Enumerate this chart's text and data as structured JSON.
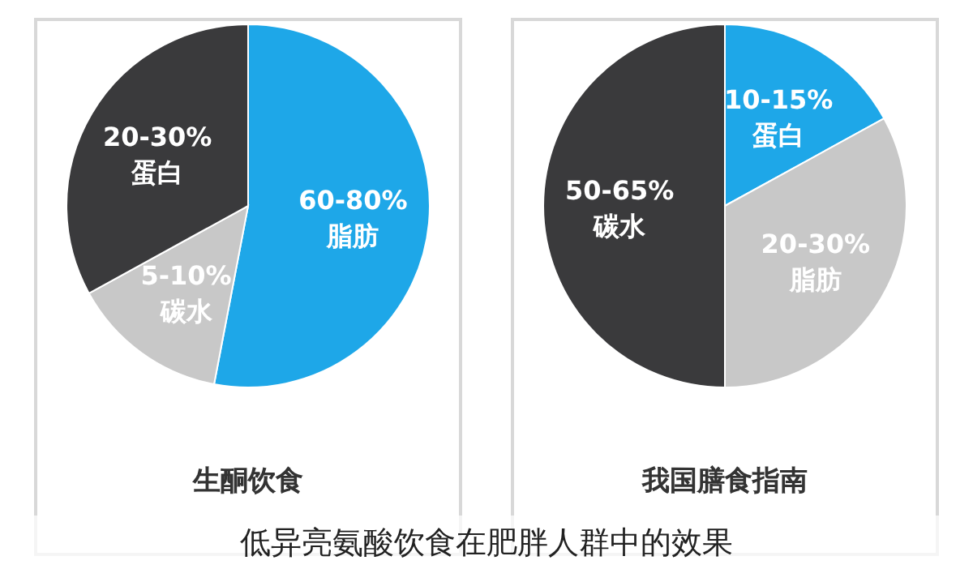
{
  "chart_data": [
    {
      "type": "pie",
      "title": "生酮饮食",
      "categories": [
        "60-80%\n脂肪",
        "5-10%\n碳水",
        "20-30%\n蛋白"
      ],
      "values": [
        53,
        14,
        33
      ],
      "colors": [
        "#1ea7e8",
        "#c8c8c8",
        "#3a3a3c"
      ],
      "annotations": [
        "低异亮氨酸饮食在肥胖人群中的效果"
      ]
    },
    {
      "type": "pie",
      "title": "我国膳食指南",
      "categories": [
        "10-15%\n蛋白",
        "20-30%\n脂肪",
        "50-65%\n碳水"
      ],
      "values": [
        17,
        33,
        50
      ],
      "colors": [
        "#1ea7e8",
        "#c8c8c8",
        "#3a3a3c"
      ]
    }
  ]
}
